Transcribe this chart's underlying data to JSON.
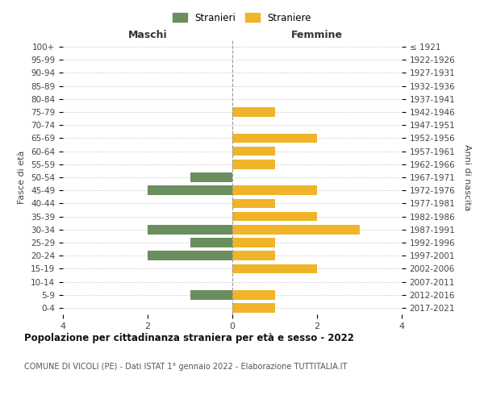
{
  "age_groups": [
    "100+",
    "95-99",
    "90-94",
    "85-89",
    "80-84",
    "75-79",
    "70-74",
    "65-69",
    "60-64",
    "55-59",
    "50-54",
    "45-49",
    "40-44",
    "35-39",
    "30-34",
    "25-29",
    "20-24",
    "15-19",
    "10-14",
    "5-9",
    "0-4"
  ],
  "birth_years": [
    "≤ 1921",
    "1922-1926",
    "1927-1931",
    "1932-1936",
    "1937-1941",
    "1942-1946",
    "1947-1951",
    "1952-1956",
    "1957-1961",
    "1962-1966",
    "1967-1971",
    "1972-1976",
    "1977-1981",
    "1982-1986",
    "1987-1991",
    "1992-1996",
    "1997-2001",
    "2002-2006",
    "2007-2011",
    "2012-2016",
    "2017-2021"
  ],
  "maschi": [
    0,
    0,
    0,
    0,
    0,
    0,
    0,
    0,
    0,
    0,
    1,
    2,
    0,
    0,
    2,
    1,
    2,
    0,
    0,
    1,
    0
  ],
  "femmine": [
    0,
    0,
    0,
    0,
    0,
    1,
    0,
    2,
    1,
    1,
    0,
    2,
    1,
    2,
    3,
    1,
    1,
    2,
    0,
    1,
    1
  ],
  "color_maschi": "#6b8e5e",
  "color_femmine": "#f0b429",
  "title": "Popolazione per cittadinanza straniera per età e sesso - 2022",
  "subtitle": "COMUNE DI VICOLI (PE) - Dati ISTAT 1° gennaio 2022 - Elaborazione TUTTITALIA.IT",
  "xlabel_left": "Maschi",
  "xlabel_right": "Femmine",
  "ylabel_left": "Fasce di età",
  "ylabel_right": "Anni di nascita",
  "legend_maschi": "Stranieri",
  "legend_femmine": "Straniere",
  "xlim": 4,
  "background_color": "#ffffff",
  "grid_color": "#d0d0d0"
}
